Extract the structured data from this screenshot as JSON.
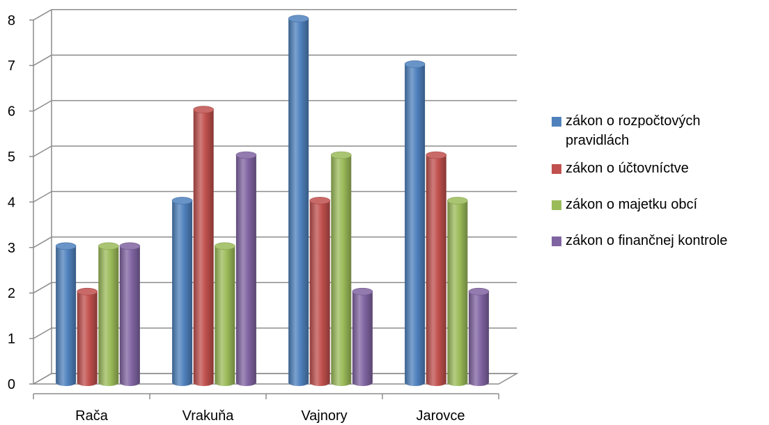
{
  "chart_data": {
    "type": "bar",
    "categories": [
      "Rača",
      "Vrakuňa",
      "Vajnory",
      "Jarovce"
    ],
    "series": [
      {
        "name": "zákon o rozpočtových pravidlách",
        "values": [
          3,
          4,
          8,
          7
        ],
        "color": "#4F81BD"
      },
      {
        "name": "zákon o účtovníctve",
        "values": [
          2,
          6,
          4,
          5
        ],
        "color": "#C0504D"
      },
      {
        "name": "zákon o majetku obcí",
        "values": [
          3,
          3,
          5,
          4
        ],
        "color": "#9BBB59"
      },
      {
        "name": "zákon o finančnej kontrole",
        "values": [
          3,
          5,
          2,
          2
        ],
        "color": "#8064A2"
      }
    ],
    "yticks": [
      "0",
      "1",
      "2",
      "3",
      "4",
      "5",
      "6",
      "7",
      "8"
    ],
    "ylim": [
      0,
      8
    ],
    "grid": true,
    "legend_position": "right",
    "title": "",
    "xlabel": "",
    "ylabel": ""
  }
}
